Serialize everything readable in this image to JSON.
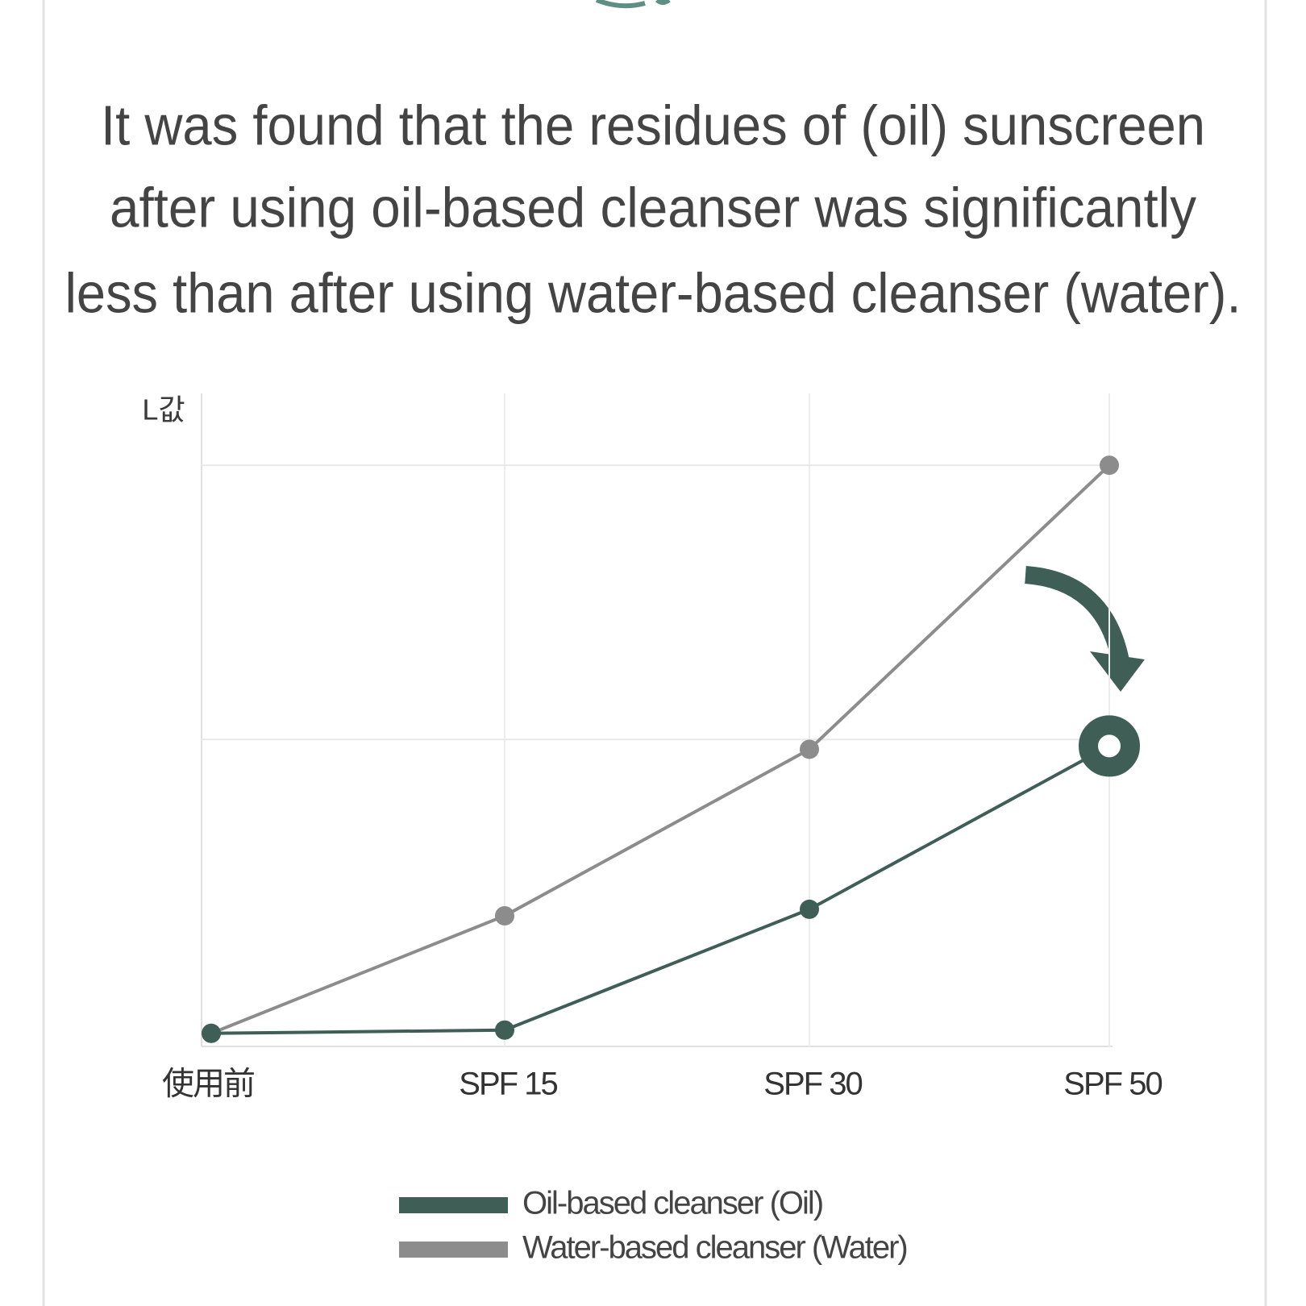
{
  "chart_data": {
    "type": "line",
    "title": [
      "It was found that the residues of (oil) sunscreen",
      "after using oil-based cleanser was significantly",
      "less than after using water-based cleanser (water)."
    ],
    "y_label": "L값",
    "categories": [
      "使用前",
      "SPF 15",
      "SPF 30",
      "SPF 50"
    ],
    "series": [
      {
        "name": "Oil-based cleanser (Oil)",
        "color": "#3f5e56",
        "values": [
          2,
          2.5,
          21,
          46
        ],
        "emphasis": 3
      },
      {
        "name": "Water-based cleanser (Water)",
        "color": "#8c8c8c",
        "values": [
          2,
          20,
          45.5,
          89
        ]
      }
    ],
    "ylim": [
      0,
      100
    ],
    "yticks": [
      47,
      89
    ],
    "grid": true
  }
}
